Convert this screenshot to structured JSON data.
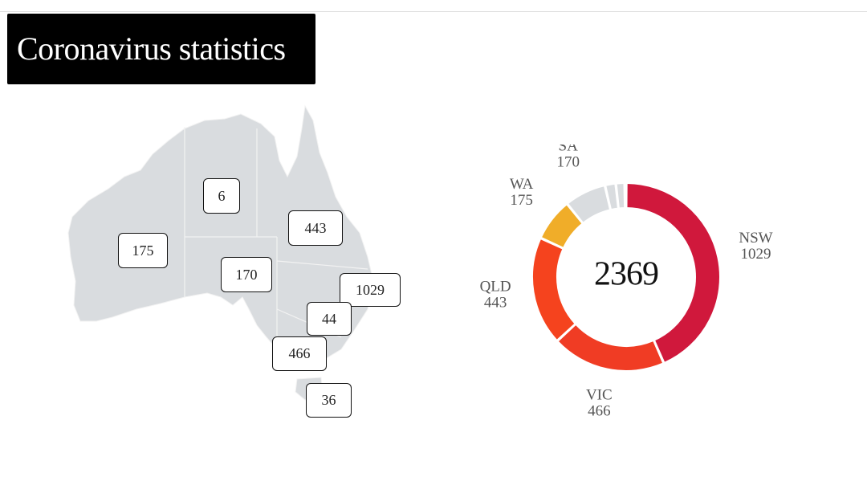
{
  "title": "Coronavirus statistics",
  "colors": {
    "map_fill": "#d9dcdf",
    "map_border": "#f2f2f2",
    "NSW": "#d0183c",
    "VIC": "#f03c24",
    "QLD": "#f5431e",
    "WA": "#f0ad29",
    "SA": "#d9dcdf",
    "TAS": "#d9dcdf",
    "NT": "#d9dcdf",
    "ACT": "#d9dcdf",
    "label_text": "#555555"
  },
  "map_labels": {
    "NT": "6",
    "WA": "175",
    "QLD": "443",
    "SA": "170",
    "NSW": "1029",
    "ACT": "44",
    "VIC": "466",
    "TAS": "36"
  },
  "chart_data": {
    "type": "pie",
    "total": "2369",
    "slices": [
      {
        "state": "NSW",
        "value": 1029,
        "label": "NSW",
        "value_label": "1029"
      },
      {
        "state": "VIC",
        "value": 466,
        "label": "VIC",
        "value_label": "466"
      },
      {
        "state": "QLD",
        "value": 443,
        "label": "QLD",
        "value_label": "443"
      },
      {
        "state": "WA",
        "value": 175,
        "label": "WA",
        "value_label": "175"
      },
      {
        "state": "SA",
        "value": 170,
        "label": "SA",
        "value_label": "170"
      },
      {
        "state": "ACT",
        "value": 44,
        "label": "",
        "value_label": ""
      },
      {
        "state": "TAS",
        "value": 36,
        "label": "",
        "value_label": ""
      },
      {
        "state": "NT",
        "value": 6,
        "label": "",
        "value_label": ""
      }
    ]
  }
}
